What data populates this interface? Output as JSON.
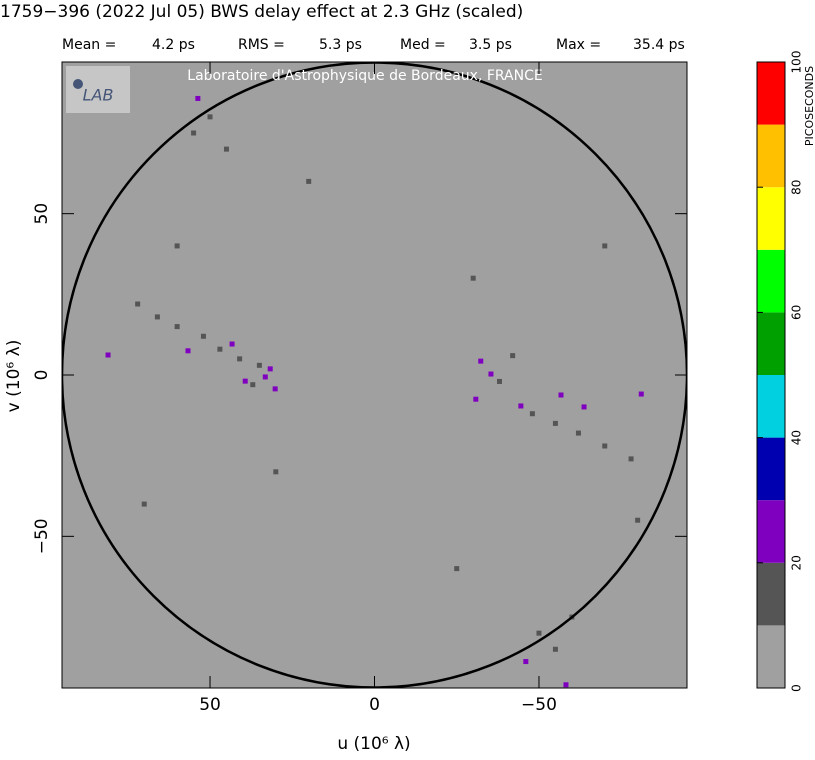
{
  "chart_data": {
    "type": "uv-map",
    "title": "1759−396  (2022 Jul 05)   BWS delay effect at  2.3 GHz (scaled)",
    "stats": [
      {
        "name": "Mean =",
        "text": "4.2 ps"
      },
      {
        "name": "RMS =",
        "text": "5.3 ps"
      },
      {
        "name": "Med =",
        "text": "3.5 ps"
      },
      {
        "name": "Max =",
        "text": "35.4 ps"
      }
    ],
    "watermark": "Laboratoire d'Astrophysique de Bordeaux, FRANCE",
    "logo": "LAB",
    "xlabel": "u  (10⁶ λ)",
    "ylabel": "v  (10⁶ λ)",
    "xlim": [
      95,
      -95
    ],
    "ylim": [
      -97,
      97
    ],
    "xticks": [
      50,
      0,
      {
        "value": -50,
        "label": "−50"
      }
    ],
    "yticks": [
      {
        "value": -50,
        "label": "−50"
      },
      0,
      50
    ],
    "circle_radius": 95,
    "background": "#a0a0a0",
    "points": {
      "u": [
        31.7,
        33.2,
        39.3,
        43.3,
        56.7,
        81,
        30.2,
        -32.3,
        -35.4,
        -30.8,
        -44.5,
        -56.7,
        -63.7,
        -81.1,
        53.7,
        -46,
        -58.2,
        35,
        37,
        41,
        47,
        52,
        60,
        66,
        72,
        -38,
        -42,
        -48,
        -55,
        -62,
        -70,
        -78,
        55,
        50,
        45,
        -50,
        -55,
        -60,
        20,
        -25,
        60,
        -70,
        70,
        -80,
        30,
        -30
      ],
      "v": [
        1.9,
        -0.6,
        -1.9,
        9.6,
        7.5,
        6.2,
        -4.3,
        4.3,
        0.3,
        -7.5,
        -9.6,
        -6.2,
        -9.9,
        -5.9,
        85.7,
        -88.8,
        -96,
        3,
        -3,
        5,
        8,
        12,
        15,
        18,
        22,
        -2,
        6,
        -12,
        -15,
        -18,
        -22,
        -26,
        75,
        80,
        70,
        -80,
        -85,
        -75,
        60,
        -60,
        40,
        40,
        -40,
        -45,
        -30,
        30
      ],
      "values": [
        25,
        25,
        25,
        25,
        25,
        25,
        25,
        25,
        25,
        25,
        25,
        25,
        25,
        25,
        25,
        25,
        25,
        15,
        15,
        15,
        15,
        15,
        15,
        15,
        15,
        15,
        15,
        15,
        15,
        15,
        15,
        15,
        15,
        15,
        15,
        15,
        15,
        15,
        15,
        15,
        15,
        15,
        15,
        15,
        15,
        15
      ]
    },
    "colorbar": {
      "label": "PICOSECONDS",
      "lim": [
        0,
        100
      ],
      "ticks": [
        0,
        20,
        40,
        60,
        80,
        100
      ],
      "colors": [
        "#a0a0a0",
        "#555555",
        "#8000c0",
        "#0000b0",
        "#00d0e0",
        "#00a000",
        "#00ff00",
        "#ffff00",
        "#ffc000",
        "#ff0000"
      ]
    }
  }
}
